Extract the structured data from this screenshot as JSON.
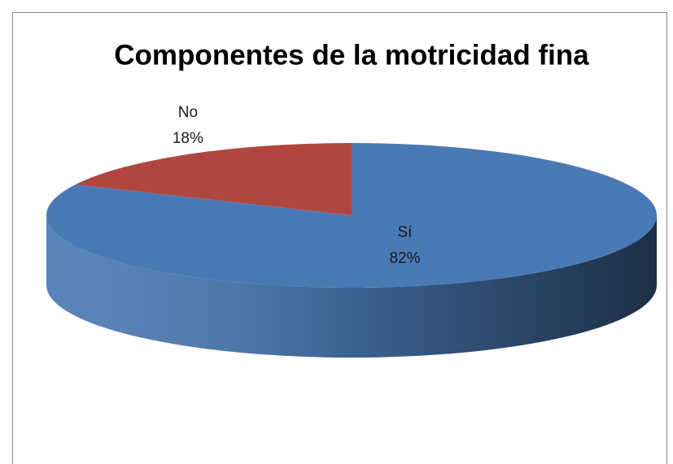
{
  "chart_data": {
    "type": "pie",
    "title": "Componentes de la motricidad fina",
    "categories": [
      "Sí",
      "No"
    ],
    "values": [
      82,
      18
    ],
    "value_labels": [
      "82%",
      "18%"
    ],
    "colors": [
      "#4a7ab5",
      "#b0473f"
    ]
  }
}
